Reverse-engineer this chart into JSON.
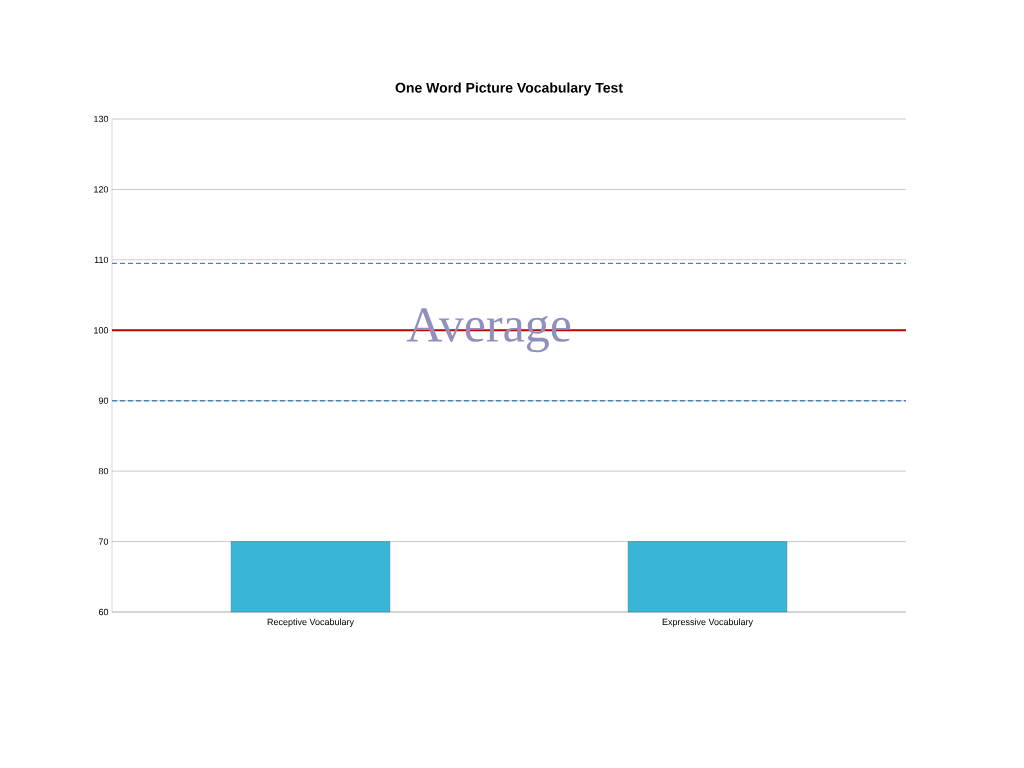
{
  "chart_data": {
    "type": "bar",
    "title": "One Word Picture Vocabulary Test",
    "categories": [
      "Receptive Vocabulary",
      "Expressive Vocabulary"
    ],
    "values": [
      70,
      70
    ],
    "color": "#3ab5d6",
    "ylim": [
      60,
      130
    ],
    "yticks": [
      60,
      70,
      80,
      90,
      100,
      110,
      120,
      130
    ],
    "grid": "y",
    "ref_lines": [
      {
        "axis": "y",
        "value": 100,
        "label": "Average",
        "color": "#c00000",
        "line_style": "solid"
      },
      {
        "axis": "y",
        "value": 109.5,
        "color": "#4f81bd",
        "line_style": "dashed"
      },
      {
        "axis": "y",
        "value": 90,
        "color": "#4f81bd",
        "line_style": "dashed"
      }
    ]
  }
}
